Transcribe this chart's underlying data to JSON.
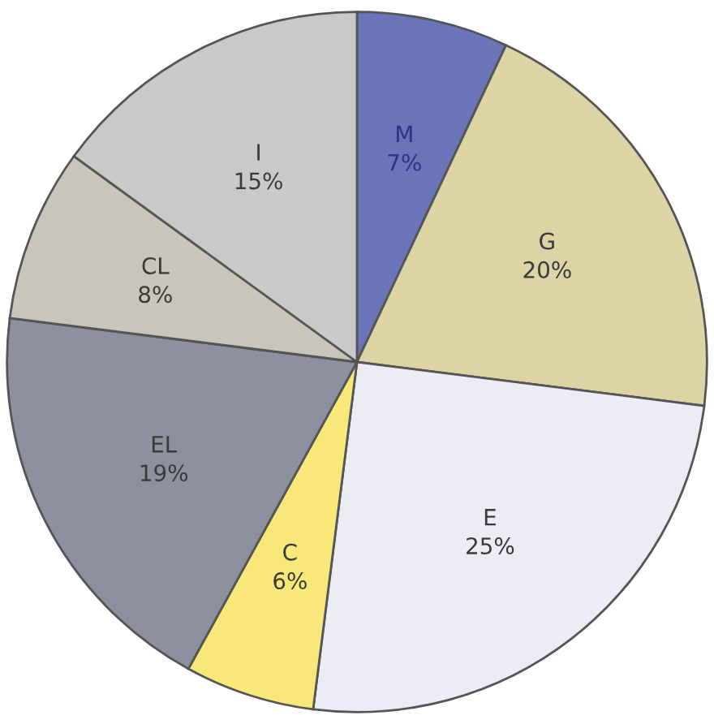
{
  "chart_data": {
    "type": "pie",
    "categories": [
      "M",
      "G",
      "E",
      "C",
      "EL",
      "CL",
      "I"
    ],
    "values": [
      7,
      20,
      25,
      6,
      19,
      8,
      15
    ],
    "colors": [
      "#6b73b9",
      "#ddd4a6",
      "#ececf4",
      "#f8e87a",
      "#8d909f",
      "#c8c5ba",
      "#c9c9c9"
    ],
    "value_labels": [
      "7%",
      "20%",
      "25%",
      "6%",
      "19%",
      "8%",
      "15%"
    ]
  }
}
